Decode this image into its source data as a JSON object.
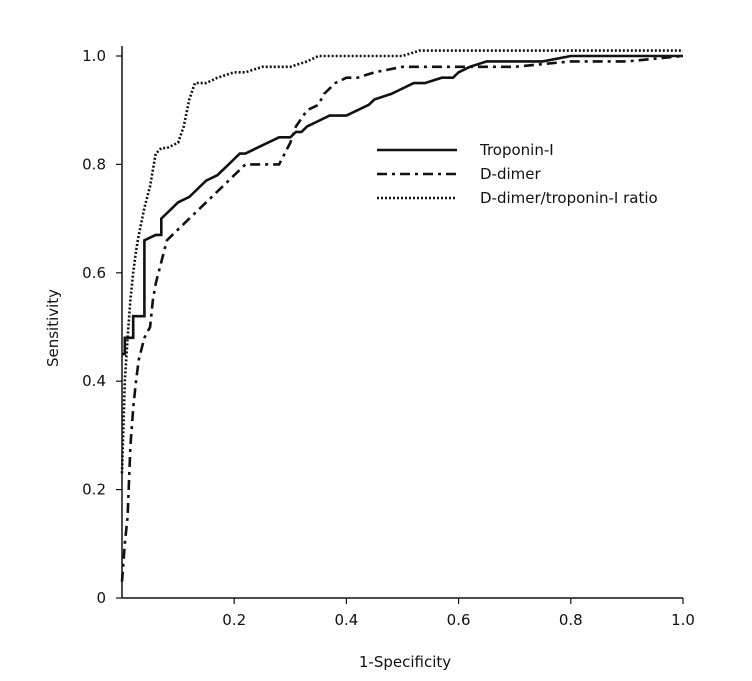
{
  "chart_data": {
    "type": "line",
    "title": "",
    "xlabel": "1-Specificity",
    "ylabel": "Sensitivity",
    "xlim": [
      0,
      1
    ],
    "ylim": [
      0,
      1
    ],
    "x_ticks": [
      {
        "value": 0.2,
        "label": "0.2"
      },
      {
        "value": 0.4,
        "label": "0.4"
      },
      {
        "value": 0.6,
        "label": "0.6"
      },
      {
        "value": 0.8,
        "label": "0.8"
      },
      {
        "value": 1.0,
        "label": "1.0"
      }
    ],
    "y_ticks": [
      {
        "value": 0,
        "label": "0"
      },
      {
        "value": 0.2,
        "label": "0.2"
      },
      {
        "value": 0.4,
        "label": "0.4"
      },
      {
        "value": 0.6,
        "label": "0.6"
      },
      {
        "value": 0.8,
        "label": "0.8"
      },
      {
        "value": 1.0,
        "label": "1.0"
      }
    ],
    "grid": false,
    "legend_position": "center-right",
    "series": [
      {
        "name": "Troponin-I",
        "style": "solid",
        "color": "#111111",
        "x": [
          0,
          0,
          0.005,
          0.005,
          0.02,
          0.02,
          0.04,
          0.04,
          0.06,
          0.07,
          0.07,
          0.08,
          0.09,
          0.1,
          0.12,
          0.13,
          0.14,
          0.15,
          0.17,
          0.18,
          0.19,
          0.2,
          0.21,
          0.22,
          0.24,
          0.26,
          0.28,
          0.3,
          0.31,
          0.32,
          0.33,
          0.35,
          0.37,
          0.39,
          0.4,
          0.42,
          0.44,
          0.45,
          0.48,
          0.5,
          0.52,
          0.54,
          0.57,
          0.59,
          0.6,
          0.62,
          0.65,
          0.7,
          0.75,
          0.8,
          0.85,
          0.9,
          0.95,
          1.0
        ],
        "y": [
          0.45,
          0.45,
          0.45,
          0.48,
          0.48,
          0.52,
          0.52,
          0.66,
          0.67,
          0.67,
          0.7,
          0.71,
          0.72,
          0.73,
          0.74,
          0.75,
          0.76,
          0.77,
          0.78,
          0.79,
          0.8,
          0.81,
          0.82,
          0.82,
          0.83,
          0.84,
          0.85,
          0.85,
          0.86,
          0.86,
          0.87,
          0.88,
          0.89,
          0.89,
          0.89,
          0.9,
          0.91,
          0.92,
          0.93,
          0.94,
          0.95,
          0.95,
          0.96,
          0.96,
          0.97,
          0.98,
          0.99,
          0.99,
          0.99,
          1.0,
          1.0,
          1.0,
          1.0,
          1.0
        ]
      },
      {
        "name": "D-dimer",
        "style": "dash-dot",
        "color": "#111111",
        "x": [
          0,
          0.005,
          0.01,
          0.015,
          0.02,
          0.025,
          0.03,
          0.04,
          0.05,
          0.055,
          0.06,
          0.07,
          0.08,
          0.1,
          0.12,
          0.14,
          0.16,
          0.18,
          0.2,
          0.22,
          0.24,
          0.26,
          0.28,
          0.3,
          0.31,
          0.33,
          0.35,
          0.36,
          0.38,
          0.4,
          0.42,
          0.45,
          0.5,
          0.55,
          0.6,
          0.65,
          0.7,
          0.8,
          0.9,
          1.0
        ],
        "y": [
          0.03,
          0.1,
          0.15,
          0.28,
          0.35,
          0.4,
          0.44,
          0.48,
          0.5,
          0.55,
          0.58,
          0.62,
          0.66,
          0.68,
          0.7,
          0.72,
          0.74,
          0.76,
          0.78,
          0.8,
          0.8,
          0.8,
          0.8,
          0.84,
          0.87,
          0.9,
          0.91,
          0.93,
          0.95,
          0.96,
          0.96,
          0.97,
          0.98,
          0.98,
          0.98,
          0.98,
          0.98,
          0.99,
          0.99,
          1.0
        ]
      },
      {
        "name": "D-dimer/troponin-I ratio",
        "style": "dotted",
        "color": "#111111",
        "x": [
          0,
          0.005,
          0.01,
          0.015,
          0.02,
          0.025,
          0.03,
          0.04,
          0.05,
          0.06,
          0.07,
          0.08,
          0.1,
          0.11,
          0.12,
          0.13,
          0.15,
          0.17,
          0.2,
          0.22,
          0.25,
          0.3,
          0.33,
          0.35,
          0.4,
          0.45,
          0.5,
          0.53,
          0.55,
          0.6,
          0.7,
          0.8,
          0.9,
          1.0
        ],
        "y": [
          0.23,
          0.4,
          0.48,
          0.55,
          0.6,
          0.64,
          0.67,
          0.72,
          0.76,
          0.82,
          0.83,
          0.83,
          0.84,
          0.87,
          0.92,
          0.95,
          0.95,
          0.96,
          0.97,
          0.97,
          0.98,
          0.98,
          0.99,
          1.0,
          1.0,
          1.0,
          1.0,
          1.01,
          1.01,
          1.01,
          1.01,
          1.01,
          1.01,
          1.01
        ]
      }
    ]
  }
}
